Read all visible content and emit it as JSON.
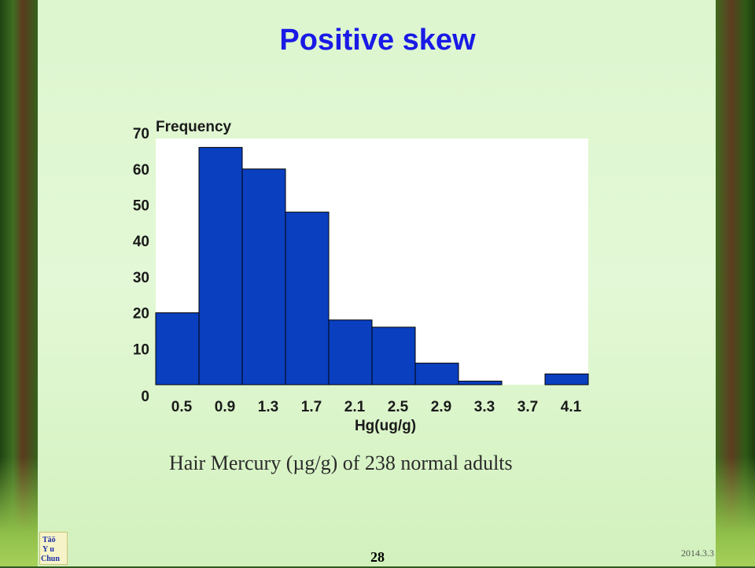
{
  "slide": {
    "title": "Positive skew",
    "caption": "Hair Mercury (µg/g) of 238 normal adults",
    "page_number": "28",
    "date": "2014.3.3",
    "logo_text": "Tāō Yu Chun"
  },
  "colors": {
    "title": "#1a1ae6",
    "bar_fill": "#0a3fbf",
    "plot_bg": "#ffffff",
    "slide_bg": "#dff6d2"
  },
  "chart_data": {
    "type": "bar",
    "title": "",
    "ylabel": "Frequency",
    "xlabel": "Hg(ug/g)",
    "yticks": [
      0,
      10,
      20,
      30,
      40,
      50,
      60,
      70
    ],
    "ylim": [
      0,
      70
    ],
    "categories": [
      "0.5",
      "0.9",
      "1.3",
      "1.7",
      "2.1",
      "2.5",
      "2.9",
      "3.3",
      "3.7",
      "4.1"
    ],
    "values": [
      20,
      66,
      60,
      48,
      18,
      16,
      6,
      1,
      0,
      3
    ],
    "grid": false,
    "legend": "none"
  }
}
